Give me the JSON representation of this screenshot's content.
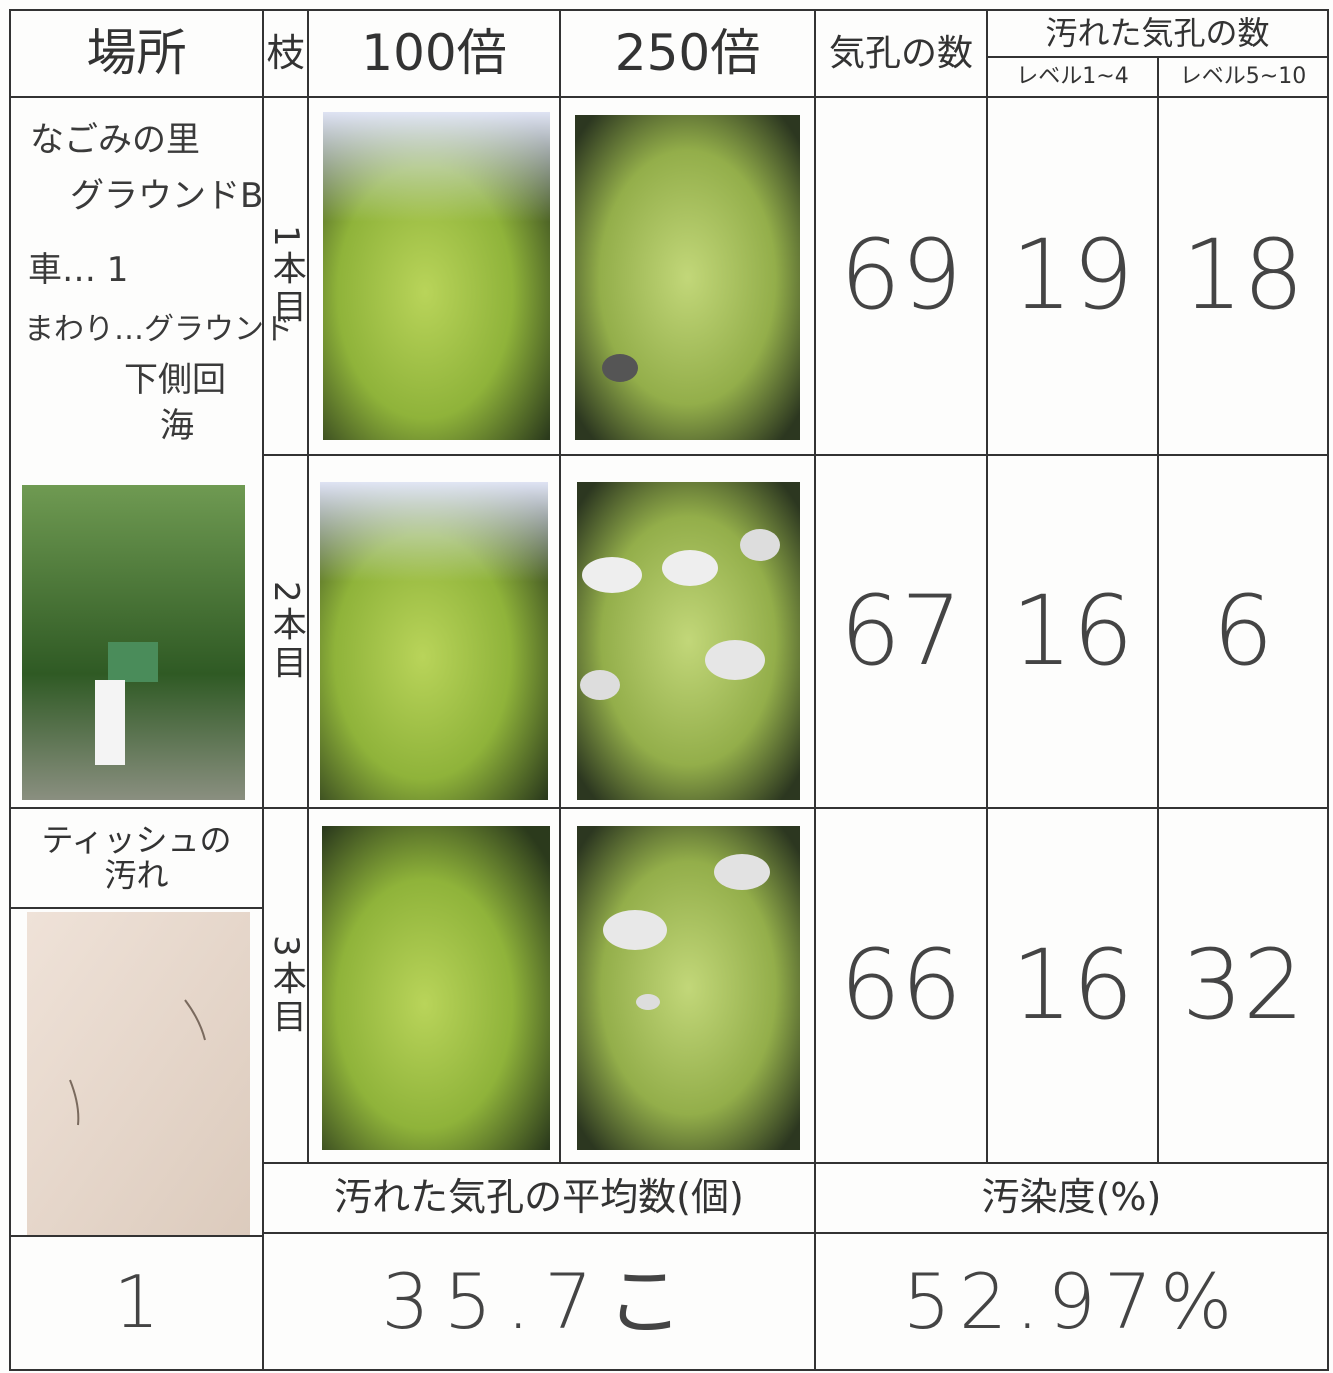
{
  "header": {
    "place": "場所",
    "branch": "枝",
    "mag100": "100倍",
    "mag250": "250倍",
    "stomata": "気孔の数",
    "dirty_stomata": "汚れた気孔の数",
    "level_low": "レベル1~4",
    "level_high": "レベル5~10"
  },
  "place_notes": [
    "なごみの里",
    "グラウンドB",
    "車… 1",
    "まわり…グラウンド",
    "下側回",
    "海"
  ],
  "rows": [
    {
      "branch": "1本目",
      "stomata": 69,
      "level_low": 19,
      "level_high": 18
    },
    {
      "branch": "2本目",
      "stomata": 67,
      "level_low": 16,
      "level_high": 6
    },
    {
      "branch": "3本目",
      "stomata": 66,
      "level_low": 16,
      "level_high": 32
    }
  ],
  "tissue_label": "ティッシュの汚れ",
  "summary": {
    "site_number": "1",
    "average_label": "汚れた気孔の平均数(個)",
    "average_value": "35.7こ",
    "pollution_label": "汚染度(%)",
    "pollution_value": "52.97%"
  }
}
